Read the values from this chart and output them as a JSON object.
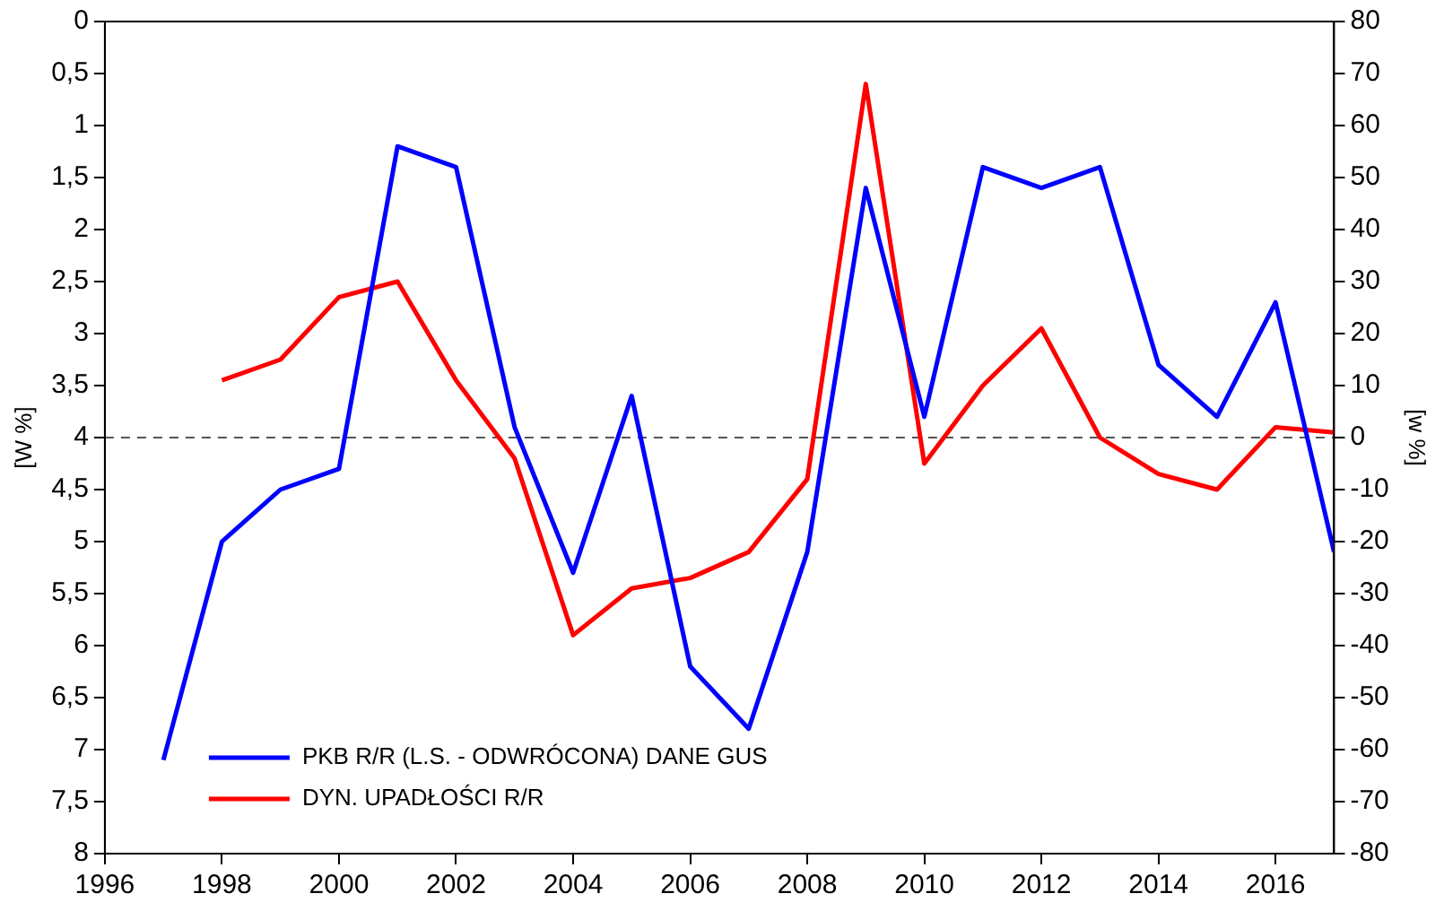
{
  "chart_data": {
    "type": "line",
    "ylabel": "[W %]",
    "y2label": "[w %]",
    "x": [
      1997,
      1998,
      1999,
      2000,
      2001,
      2002,
      2003,
      2004,
      2005,
      2006,
      2007,
      2008,
      2009,
      2010,
      2011,
      2012,
      2013,
      2014,
      2015,
      2016,
      2017
    ],
    "series": [
      {
        "name": "PKB R/R (L.S. - ODWRÓCONA) DANE GUS",
        "color": "#0000ff",
        "values": [
          7.1,
          5.0,
          4.5,
          4.3,
          1.2,
          1.4,
          3.9,
          5.3,
          3.6,
          6.2,
          6.8,
          5.1,
          1.6,
          3.8,
          1.4,
          1.6,
          1.4,
          3.3,
          3.8,
          2.7,
          5.1
        ]
      },
      {
        "name": "DYN. UPADŁOŚCI R/R",
        "color": "#ff0000",
        "axis": "y2",
        "values": [
          null,
          11,
          15,
          27,
          30,
          11,
          -4,
          -38,
          -29,
          -27,
          -22,
          -8,
          68,
          -5,
          10,
          21,
          0,
          -7,
          -10,
          2,
          1
        ]
      }
    ],
    "xlim": [
      1996,
      2017
    ],
    "xticks": [
      1996,
      1998,
      2000,
      2002,
      2004,
      2006,
      2008,
      2010,
      2012,
      2014,
      2016
    ],
    "ylim": [
      8,
      0
    ],
    "yticks": [
      {
        "value": 0,
        "label": "0"
      },
      {
        "value": 0.5,
        "label": "0,5"
      },
      {
        "value": 1,
        "label": "1"
      },
      {
        "value": 1.5,
        "label": "1,5"
      },
      {
        "value": 2,
        "label": "2"
      },
      {
        "value": 2.5,
        "label": "2,5"
      },
      {
        "value": 3,
        "label": "3"
      },
      {
        "value": 3.5,
        "label": "3,5"
      },
      {
        "value": 4,
        "label": "4"
      },
      {
        "value": 4.5,
        "label": "4,5"
      },
      {
        "value": 5,
        "label": "5"
      },
      {
        "value": 5.5,
        "label": "5,5"
      },
      {
        "value": 6,
        "label": "6"
      },
      {
        "value": 6.5,
        "label": "6,5"
      },
      {
        "value": 7,
        "label": "7"
      },
      {
        "value": 7.5,
        "label": "7,5"
      },
      {
        "value": 8,
        "label": "8"
      }
    ],
    "y2lim": [
      -80,
      80
    ],
    "y2ticks": [
      -80,
      -70,
      -60,
      -50,
      -40,
      -30,
      -20,
      -10,
      0,
      10,
      20,
      30,
      40,
      50,
      60,
      70,
      80
    ],
    "ref_lines": [
      {
        "axis": "y2",
        "value": 0,
        "color": "#555555",
        "line_style": "dashed"
      }
    ],
    "grid": false,
    "legend": "bottom left",
    "marker": "none",
    "line_style": "solid"
  }
}
